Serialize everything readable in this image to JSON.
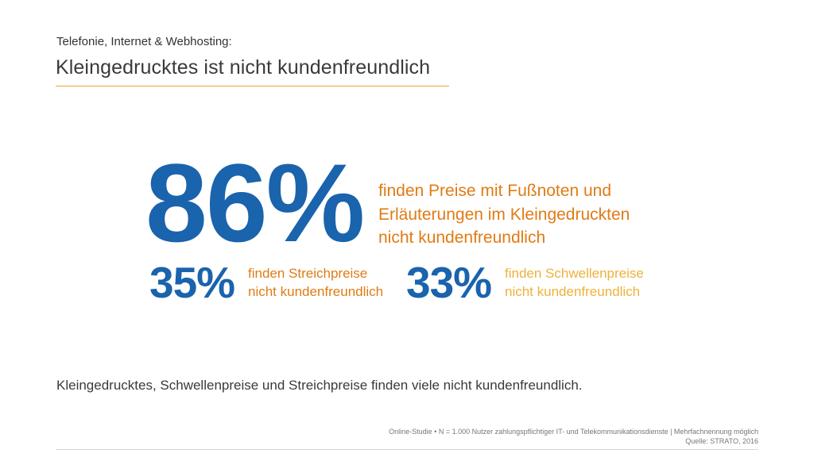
{
  "header": {
    "subtitle": "Telefonie, Internet & Webhosting:",
    "title": "Kleingedrucktes ist nicht kundenfreundlich"
  },
  "stats": {
    "main": {
      "percent": "86%",
      "lines": [
        "finden Preise mit Fußnoten und",
        "Erläuterungen im Kleingedruckten",
        "nicht kundenfreundlich"
      ]
    },
    "streichpreise": {
      "percent": "35%",
      "lines": [
        "finden Streichpreise",
        "nicht kundenfreundlich"
      ]
    },
    "schwellenpreise": {
      "percent": "33%",
      "lines": [
        "finden Schwellenpreise",
        "nicht kundenfreundlich"
      ]
    }
  },
  "summary": "Kleingedrucktes, Schwellenpreise und Streichpreise finden viele nicht kundenfreundlich.",
  "footer": {
    "study": "Online-Studie • N = 1.000 Nutzer zahlungspflichtiger IT- und Telekommunikationsdienste | Mehrfachnennung möglich",
    "source": "Quelle: STRATO, 2016"
  },
  "colors": {
    "blue": "#1a63ad",
    "orange": "#e07b14",
    "yellow": "#eeb13a"
  }
}
